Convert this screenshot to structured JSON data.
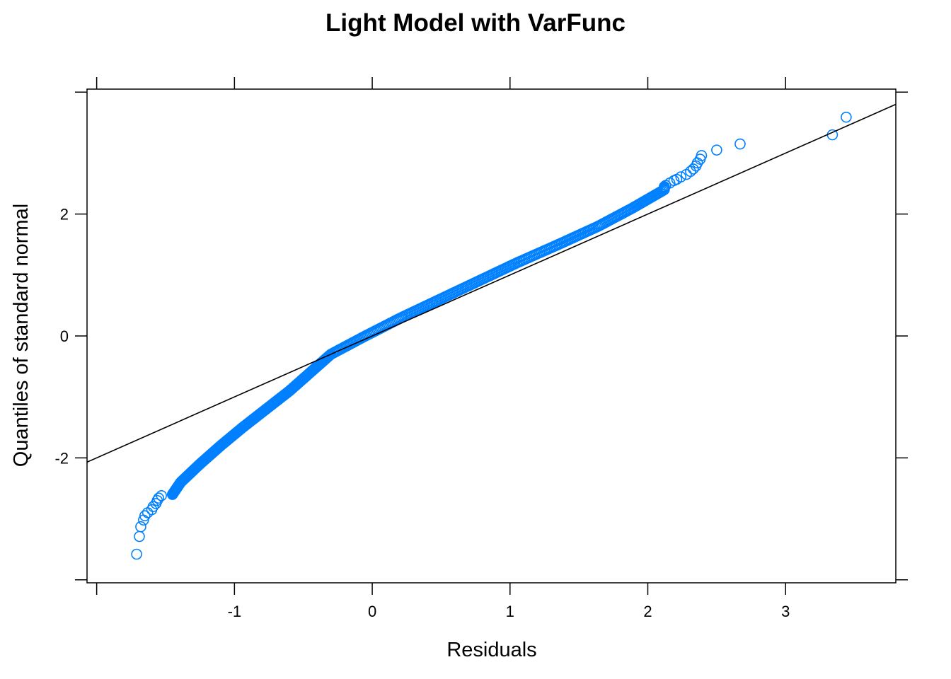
{
  "chart_data": {
    "type": "scatter",
    "title": "Light Model with VarFunc",
    "xlabel": "Residuals",
    "ylabel": "Quantiles of standard normal",
    "xlim": [
      -2.07,
      3.8
    ],
    "ylim": [
      -4.05,
      4.05
    ],
    "x_ticks": [
      -1,
      0,
      1,
      2,
      3
    ],
    "y_ticks": [
      -2,
      0,
      2
    ],
    "x_tick_labels": [
      "-1",
      "0",
      "1",
      "2",
      "3"
    ],
    "y_tick_labels": [
      "-2",
      "0",
      "2"
    ],
    "point_color": "#0080ff",
    "line_color": "#000000",
    "reference_line": {
      "x1": -2.07,
      "y1": -2.07,
      "x2": 3.8,
      "y2": 3.8
    },
    "qq_curve": {
      "z": [
        -3.3,
        -3.0,
        -2.7,
        -2.4,
        -2.1,
        -1.8,
        -1.5,
        -1.2,
        -0.9,
        -0.6,
        -0.3,
        0.0,
        0.3,
        0.6,
        0.9,
        1.2,
        1.5,
        1.8,
        2.1,
        2.4
      ],
      "x": [
        -1.6,
        -1.55,
        -1.48,
        -1.39,
        -1.25,
        -1.1,
        -0.94,
        -0.77,
        -0.6,
        -0.45,
        -0.3,
        -0.05,
        0.21,
        0.49,
        0.77,
        1.05,
        1.35,
        1.64,
        1.89,
        2.12
      ]
    },
    "tail_points": [
      {
        "x": -1.71,
        "y": -3.58
      },
      {
        "x": -1.69,
        "y": -3.29
      },
      {
        "x": -1.68,
        "y": -3.13
      },
      {
        "x": -1.66,
        "y": -3.02
      },
      {
        "x": -1.65,
        "y": -2.95
      },
      {
        "x": -1.63,
        "y": -2.9
      },
      {
        "x": -1.6,
        "y": -2.85
      },
      {
        "x": -1.59,
        "y": -2.8
      },
      {
        "x": -1.57,
        "y": -2.75
      },
      {
        "x": -1.56,
        "y": -2.7
      },
      {
        "x": -1.55,
        "y": -2.66
      },
      {
        "x": -1.53,
        "y": -2.62
      },
      {
        "x": 2.13,
        "y": 2.47
      },
      {
        "x": 2.16,
        "y": 2.51
      },
      {
        "x": 2.19,
        "y": 2.55
      },
      {
        "x": 2.21,
        "y": 2.57
      },
      {
        "x": 2.24,
        "y": 2.61
      },
      {
        "x": 2.28,
        "y": 2.65
      },
      {
        "x": 2.31,
        "y": 2.7
      },
      {
        "x": 2.33,
        "y": 2.74
      },
      {
        "x": 2.35,
        "y": 2.79
      },
      {
        "x": 2.36,
        "y": 2.84
      },
      {
        "x": 2.38,
        "y": 2.9
      },
      {
        "x": 2.39,
        "y": 2.96
      },
      {
        "x": 2.5,
        "y": 3.05
      },
      {
        "x": 2.67,
        "y": 3.15
      },
      {
        "x": 3.34,
        "y": 3.3
      },
      {
        "x": 3.44,
        "y": 3.59
      }
    ]
  }
}
